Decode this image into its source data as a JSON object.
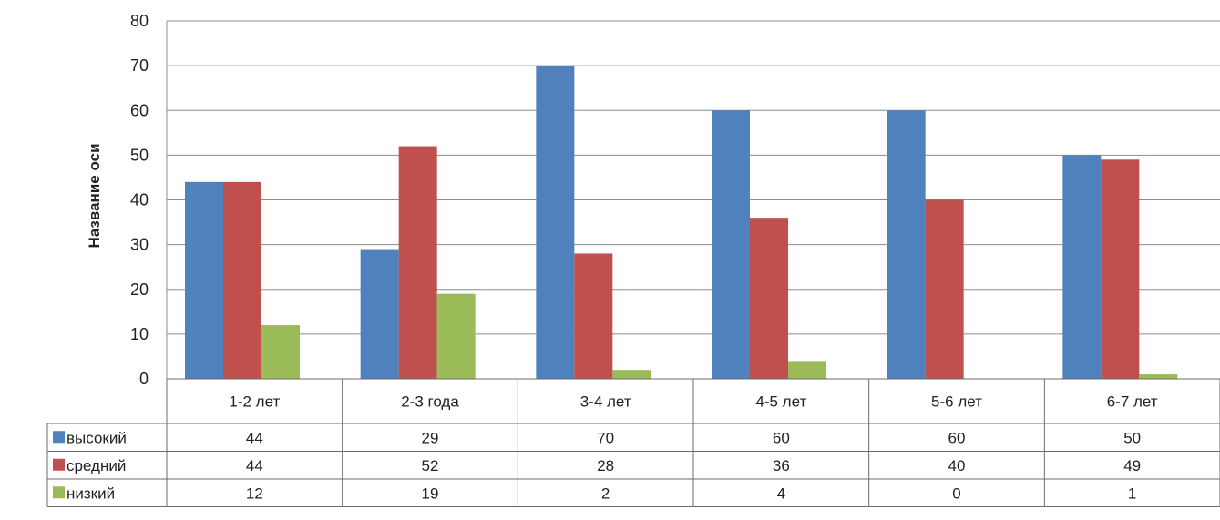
{
  "chart_data": {
    "type": "bar",
    "title": "",
    "ylabel": "Название оси",
    "xlabel": "",
    "ylim": [
      0,
      80
    ],
    "yticks": [
      0,
      10,
      20,
      30,
      40,
      50,
      60,
      70,
      80
    ],
    "grid": true,
    "legend": "data-table",
    "categories": [
      "1-2 лет",
      "2-3 года",
      "3-4 лет",
      "4-5 лет",
      "5-6 лет",
      "6-7 лет"
    ],
    "series": [
      {
        "name": "высокий",
        "color": "#4f81bd",
        "values": [
          44,
          29,
          70,
          60,
          60,
          50
        ]
      },
      {
        "name": "средний",
        "color": "#c0504d",
        "values": [
          44,
          52,
          28,
          36,
          40,
          49
        ]
      },
      {
        "name": "низкий",
        "color": "#9bbb59",
        "values": [
          12,
          19,
          2,
          4,
          0,
          1
        ]
      }
    ]
  }
}
